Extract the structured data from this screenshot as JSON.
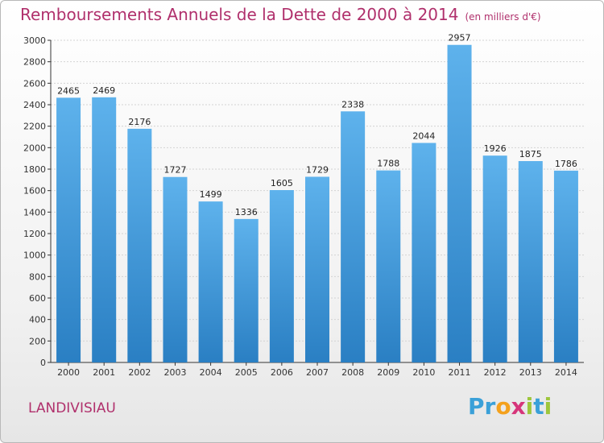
{
  "header": {
    "title": "Remboursements Annuels de la Dette de 2000 à 2014",
    "subtitle": "(en milliers d'€)"
  },
  "footer": {
    "city": "LANDIVISIAU",
    "logo_letters": [
      {
        "char": "P",
        "color": "#3aa0d8"
      },
      {
        "char": "r",
        "color": "#3aa0d8"
      },
      {
        "char": "o",
        "color": "#f4a11d"
      },
      {
        "char": "x",
        "color": "#d6357a"
      },
      {
        "char": "i",
        "color": "#9dc63c"
      },
      {
        "char": "t",
        "color": "#3aa0d8"
      },
      {
        "char": "i",
        "color": "#9dc63c"
      }
    ]
  },
  "colors": {
    "title": "#b0306c",
    "bar_top": "#5eb2ec",
    "bar_bottom": "#2a7fc3",
    "grid": "#d3d3d3",
    "axis": "#333333"
  },
  "chart_data": {
    "type": "bar",
    "title": "Remboursements Annuels de la Dette de 2000 à 2014",
    "subtitle": "(en milliers d'€)",
    "categories": [
      "2000",
      "2001",
      "2002",
      "2003",
      "2004",
      "2005",
      "2006",
      "2007",
      "2008",
      "2009",
      "2010",
      "2011",
      "2012",
      "2013",
      "2014"
    ],
    "values": [
      2465,
      2469,
      2176,
      1727,
      1499,
      1336,
      1605,
      1729,
      2338,
      1788,
      2044,
      2957,
      1926,
      1875,
      1786
    ],
    "ylim": [
      0,
      3000
    ],
    "yticks": [
      0,
      200,
      400,
      600,
      800,
      1000,
      1200,
      1400,
      1600,
      1800,
      2000,
      2200,
      2400,
      2600,
      2800,
      3000
    ],
    "grid": true,
    "legend": "none"
  }
}
